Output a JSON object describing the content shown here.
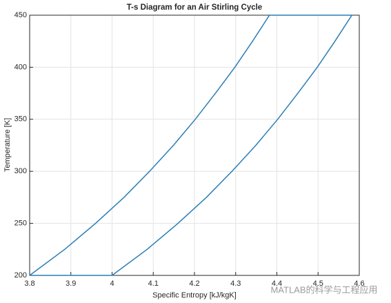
{
  "chart_data": {
    "type": "line",
    "title": "T-s Diagram for an Air Stirling Cycle",
    "xlabel": "Specific Entropy [kJ/kgK]",
    "ylabel": "Temperature [K]",
    "watermark": "MATLAB的科学与工程应用",
    "xlim": [
      3.8,
      4.6
    ],
    "ylim": [
      200,
      450
    ],
    "xticks": [
      3.8,
      3.9,
      4,
      4.1,
      4.2,
      4.3,
      4.4,
      4.5,
      4.6
    ],
    "yticks": [
      200,
      250,
      300,
      350,
      400,
      450
    ],
    "grid": true,
    "series": [
      {
        "color": "#2a7db5",
        "x": [
          3.8,
          3.885,
          3.96,
          4.029,
          4.091,
          4.149,
          4.202,
          4.251,
          4.298,
          4.341,
          4.382,
          4.582,
          4.541,
          4.498,
          4.451,
          4.402,
          4.349,
          4.291,
          4.229,
          4.16,
          4.085,
          4.0,
          3.8
        ],
        "values": [
          200,
          225,
          250,
          275,
          300,
          325,
          350,
          375,
          400,
          425,
          450,
          450,
          425,
          400,
          375,
          350,
          325,
          300,
          275,
          250,
          225,
          200,
          200
        ]
      }
    ]
  }
}
